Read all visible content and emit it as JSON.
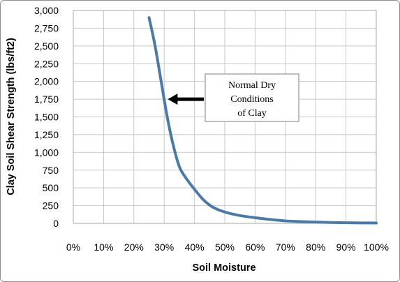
{
  "chart_data": {
    "type": "line",
    "title": "",
    "xlabel": "Soil Moisture",
    "ylabel": "Clay Soil Shear Strength (lbs/ft2)",
    "xlim": [
      0,
      100
    ],
    "ylim": [
      0,
      3000
    ],
    "x_tick_values": [
      0,
      10,
      20,
      30,
      40,
      50,
      60,
      70,
      80,
      90,
      100
    ],
    "x_tick_labels": [
      "0%",
      "10%",
      "20%",
      "30%",
      "40%",
      "50%",
      "60%",
      "70%",
      "80%",
      "90%",
      "100%"
    ],
    "y_tick_values": [
      0,
      250,
      500,
      750,
      1000,
      1250,
      1500,
      1750,
      2000,
      2250,
      2500,
      2750,
      3000
    ],
    "y_tick_labels": [
      "0",
      "250",
      "500",
      "750",
      "1,000",
      "1,250",
      "1,500",
      "1,750",
      "2,000",
      "2,250",
      "2,500",
      "2,750",
      "3,000"
    ],
    "grid": true,
    "legend": "none",
    "series": [
      {
        "color": "#4a7ba7",
        "points": [
          {
            "x": 25,
            "y": 2900
          },
          {
            "x": 27,
            "y": 2500
          },
          {
            "x": 29,
            "y": 2000
          },
          {
            "x": 31,
            "y": 1500
          },
          {
            "x": 33,
            "y": 1100
          },
          {
            "x": 35,
            "y": 800
          },
          {
            "x": 37,
            "y": 650
          },
          {
            "x": 40,
            "y": 480
          },
          {
            "x": 43,
            "y": 330
          },
          {
            "x": 46,
            "y": 230
          },
          {
            "x": 50,
            "y": 160
          },
          {
            "x": 55,
            "y": 110
          },
          {
            "x": 60,
            "y": 80
          },
          {
            "x": 65,
            "y": 55
          },
          {
            "x": 70,
            "y": 35
          },
          {
            "x": 75,
            "y": 25
          },
          {
            "x": 80,
            "y": 18
          },
          {
            "x": 85,
            "y": 12
          },
          {
            "x": 90,
            "y": 8
          },
          {
            "x": 95,
            "y": 6
          },
          {
            "x": 100,
            "y": 5
          }
        ]
      }
    ],
    "annotation": {
      "text_lines": [
        "Normal Dry",
        "Conditions",
        "of Clay"
      ],
      "arrow_target": {
        "x": 30.5,
        "y": 1750
      }
    }
  }
}
